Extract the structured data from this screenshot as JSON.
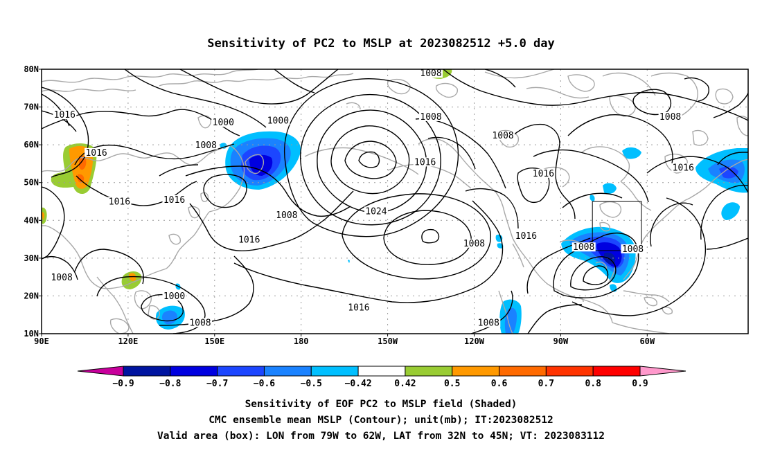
{
  "title": "Sensitivity of PC2 to MSLP at 2023082512 +5.0 day",
  "lat_labels": [
    "80N",
    "70N",
    "60N",
    "50N",
    "40N",
    "30N",
    "20N",
    "10N"
  ],
  "lon_labels": [
    "90E",
    "120E",
    "150E",
    "180",
    "150W",
    "120W",
    "90W",
    "60W"
  ],
  "contour_labels": [
    {
      "text": "1008",
      "lon": -135,
      "lat": 78.5
    },
    {
      "text": "1016",
      "lon": 98,
      "lat": 67.5
    },
    {
      "text": "1000",
      "lon": 153,
      "lat": 65.5
    },
    {
      "text": "1000",
      "lon": 172,
      "lat": 66
    },
    {
      "text": "1008",
      "lon": -135,
      "lat": 67
    },
    {
      "text": "1008",
      "lon": -110,
      "lat": 62
    },
    {
      "text": "1008",
      "lon": -52,
      "lat": 67
    },
    {
      "text": "1008",
      "lon": 147,
      "lat": 59.5
    },
    {
      "text": "1016",
      "lon": 109,
      "lat": 57.5
    },
    {
      "text": "1016",
      "lon": -137,
      "lat": 55
    },
    {
      "text": "1016",
      "lon": -96,
      "lat": 52
    },
    {
      "text": "1016",
      "lon": -47.5,
      "lat": 53.5
    },
    {
      "text": "1016",
      "lon": 117,
      "lat": 44.5
    },
    {
      "text": "1016",
      "lon": 136,
      "lat": 45
    },
    {
      "text": "1008",
      "lon": 175,
      "lat": 41
    },
    {
      "text": "1024",
      "lon": -154,
      "lat": 42
    },
    {
      "text": "1016",
      "lon": 162,
      "lat": 34.5
    },
    {
      "text": "1008",
      "lon": -120,
      "lat": 33.5
    },
    {
      "text": "1016",
      "lon": -102,
      "lat": 35.5
    },
    {
      "text": "1008",
      "lon": -82,
      "lat": 32.5
    },
    {
      "text": "1008",
      "lon": -65,
      "lat": 32
    },
    {
      "text": "1008",
      "lon": 97,
      "lat": 24.5
    },
    {
      "text": "1000",
      "lon": 136,
      "lat": 19.5
    },
    {
      "text": "1016",
      "lon": -160,
      "lat": 16.5
    },
    {
      "text": "1008",
      "lon": 145,
      "lat": 12.5
    },
    {
      "text": "1008",
      "lon": -115,
      "lat": 12.5
    }
  ],
  "colorbar": {
    "labels": [
      "−0.9",
      "−0.8",
      "−0.7",
      "−0.6",
      "−0.5",
      "−0.42",
      "0.42",
      "0.5",
      "0.6",
      "0.7",
      "0.8",
      "0.9"
    ],
    "colors": [
      "#c8009c",
      "#0014a0",
      "#0000e0",
      "#1c46ff",
      "#1a82ff",
      "#00bfff",
      "#ffffff",
      "#99cc33",
      "#ff9900",
      "#ff6a00",
      "#ff3300",
      "#ff0000",
      "#ff99cc"
    ]
  },
  "caption": {
    "line1": "Sensitivity of EOF PC2 to MSLP field (Shaded)",
    "line2": "CMC ensemble mean MSLP (Contour); unit(mb); IT:2023082512",
    "line3": "Valid area (box): LON from 79W to 62W, LAT from 32N to 45N; VT: 2023083112"
  },
  "valid_box": {
    "lon_min": -79,
    "lon_max": -62,
    "lat_min": 32,
    "lat_max": 45
  },
  "colors": {
    "coastline": "#a8a8a8",
    "contour": "#000000",
    "grid": "#9a9a9a"
  }
}
